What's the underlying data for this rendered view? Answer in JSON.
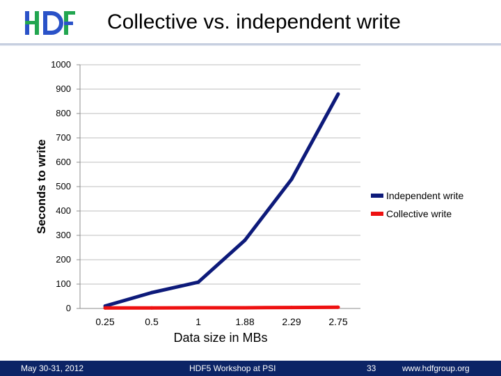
{
  "header": {
    "title": "Collective vs. independent write",
    "logo_text": "HDF"
  },
  "chart_data": {
    "type": "line",
    "title": "",
    "xlabel": "Data size in MBs",
    "ylabel": "Seconds to write",
    "categories": [
      "0.25",
      "0.5",
      "1",
      "1.88",
      "2.29",
      "2.75"
    ],
    "ylim": [
      0,
      1000
    ],
    "yticks": [
      0,
      100,
      200,
      300,
      400,
      500,
      600,
      700,
      800,
      900,
      1000
    ],
    "grid": true,
    "legend_position": "right",
    "series": [
      {
        "name": "Independent write",
        "color": "#0d1a7a",
        "values": [
          10,
          65,
          108,
          280,
          530,
          880
        ]
      },
      {
        "name": "Collective write",
        "color": "#ee1111",
        "values": [
          2,
          2,
          3,
          3,
          4,
          5
        ]
      }
    ]
  },
  "footer": {
    "date": "May 30-31, 2012",
    "event": "HDF5 Workshop at PSI",
    "page": "33",
    "site": "www.hdfgroup.org"
  },
  "colors": {
    "footer_bg": "#0c2466",
    "logo_blue": "#2a52c8",
    "logo_green": "#22a650"
  }
}
